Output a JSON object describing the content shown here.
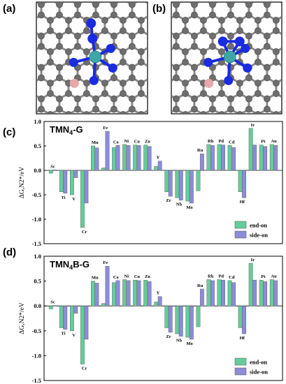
{
  "figure": {
    "panel_labels": [
      "(a)",
      "(b)",
      "(c)",
      "(d)"
    ],
    "colors": {
      "end_on": "#66CC99",
      "side_on": "#8C8CD8",
      "carbon": "#6E6E6E",
      "nitrogen": "#1A2BE0",
      "metal": "#3FA6A6",
      "boron": "#E8A8A8"
    },
    "molecule_icons": [
      "end-on-adsorption-structure",
      "side-on-adsorption-structure"
    ]
  },
  "chart_data": [
    {
      "type": "bar",
      "title": "TMN4-G",
      "title_main": "TMN",
      "title_sub": "4",
      "title_suffix": "-G",
      "ylabel": "ΔG,N2*/eV",
      "ylim": [
        -1.5,
        1.0
      ],
      "yticks": [
        -1.5,
        -1.0,
        -0.5,
        0.0,
        0.5,
        1.0
      ],
      "legend_position": "bottom-right",
      "categories": [
        "Sc",
        "Ti",
        "V",
        "Cr",
        "Mn",
        "Fe",
        "Co",
        "Ni",
        "Cu",
        "Zn",
        "Y",
        "Zr",
        "Nb",
        "Mo",
        "Ru",
        "Rh",
        "Pd",
        "Cd",
        "Hf",
        "Ir",
        "Pt",
        "Au"
      ],
      "series": [
        {
          "name": "end-on",
          "values": [
            -0.06,
            -0.44,
            -0.5,
            -1.17,
            0.5,
            0.05,
            0.47,
            0.53,
            0.52,
            0.52,
            0.08,
            -0.44,
            -0.56,
            -0.63,
            -0.42,
            0.53,
            0.53,
            0.51,
            -0.44,
            0.86,
            0.52,
            0.53
          ]
        },
        {
          "name": "side-on",
          "values": [
            0.01,
            -0.47,
            -0.15,
            -0.67,
            0.46,
            0.8,
            0.51,
            0.51,
            0.51,
            0.49,
            0.19,
            -0.53,
            -0.61,
            -0.67,
            0.34,
            0.51,
            0.52,
            0.47,
            -0.56,
            0.52,
            0.49,
            0.51
          ]
        }
      ]
    },
    {
      "type": "bar",
      "title": "TMN4B-G",
      "title_main": "TMN",
      "title_sub": "4",
      "title_suffix": "B-G",
      "ylabel": "ΔG,N2*/eV",
      "ylim": [
        -1.5,
        1.0
      ],
      "yticks": [
        -1.5,
        -1.0,
        -0.5,
        0.0,
        0.5,
        1.0
      ],
      "legend_position": "bottom-right",
      "categories": [
        "Sc",
        "Ti",
        "V",
        "Cr",
        "Mn",
        "Fe",
        "Co",
        "Ni",
        "Cu",
        "Zn",
        "Y",
        "Zr",
        "Nb",
        "Mo",
        "Ru",
        "Rh",
        "Pd",
        "Cd",
        "Hf",
        "Ir",
        "Pt",
        "Au"
      ],
      "series": [
        {
          "name": "end-on",
          "values": [
            -0.06,
            -0.44,
            -0.5,
            -1.17,
            0.5,
            0.05,
            0.47,
            0.53,
            0.52,
            0.52,
            0.08,
            -0.44,
            -0.56,
            -0.63,
            -0.42,
            0.53,
            0.53,
            0.51,
            -0.44,
            0.86,
            0.52,
            0.53
          ]
        },
        {
          "name": "side-on",
          "values": [
            0.01,
            -0.47,
            -0.15,
            -0.67,
            0.46,
            0.8,
            0.51,
            0.51,
            0.51,
            0.49,
            0.19,
            -0.53,
            -0.61,
            -0.67,
            0.34,
            0.51,
            0.52,
            0.47,
            -0.56,
            0.52,
            0.49,
            0.51
          ]
        }
      ]
    }
  ]
}
